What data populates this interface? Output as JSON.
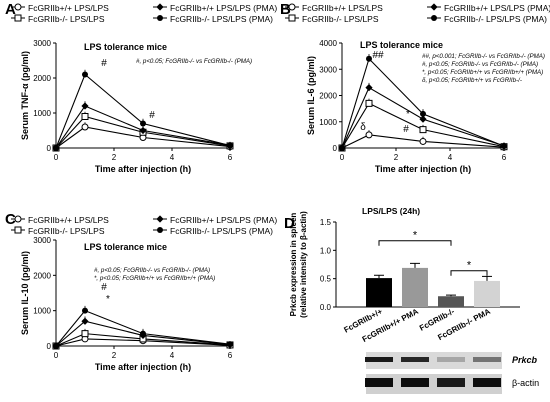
{
  "chart_data": [
    {
      "panel": "A",
      "type": "line",
      "title": "LPS tolerance mice",
      "xlabel": "Time after injection (h)",
      "ylabel": "Serum TNF-α (pg/ml)",
      "xlim": [
        0,
        6
      ],
      "ylim": [
        0,
        3000
      ],
      "xticks": [
        "0",
        "2",
        "4",
        "6"
      ],
      "yticks": [
        "0",
        "1000",
        "2000",
        "3000"
      ],
      "x": [
        0,
        1,
        3,
        6
      ],
      "series": [
        {
          "name": "FcGRIIb+/+ LPS/LPS",
          "marker": "open-circle",
          "values": [
            0,
            600,
            300,
            40
          ]
        },
        {
          "name": "FcGRIIb-/- LPS/LPS",
          "marker": "open-square",
          "values": [
            0,
            900,
            450,
            60
          ]
        },
        {
          "name": "FcGRIIb+/+ LPS/LPS (PMA)",
          "marker": "filled-diamond",
          "values": [
            0,
            1200,
            500,
            80
          ]
        },
        {
          "name": "FcGRIIb-/- LPS/LPS (PMA)",
          "marker": "filled-circle",
          "values": [
            0,
            2100,
            700,
            70
          ]
        }
      ],
      "annotations": [
        "#",
        "#"
      ],
      "note": "#, p<0.05; FcGRIIb-/- vs FcGRIIb-/- (PMA)",
      "legend": [
        {
          "label": "FcGRIIb+/+ LPS/LPS",
          "marker": "open-circle"
        },
        {
          "label": "FcGRIIb+/+ LPS/LPS (PMA)",
          "marker": "filled-diamond"
        },
        {
          "label": "FcGRIIb-/- LPS/LPS",
          "marker": "open-square"
        },
        {
          "label": "FcGRIIb-/- LPS/LPS (PMA)",
          "marker": "filled-circle"
        }
      ]
    },
    {
      "panel": "B",
      "type": "line",
      "title": "LPS tolerance mice",
      "xlabel": "Time after injection (h)",
      "ylabel": "Serum IL-6 (pg/ml)",
      "xlim": [
        0,
        6
      ],
      "ylim": [
        0,
        4000
      ],
      "xticks": [
        "0",
        "2",
        "4",
        "6"
      ],
      "yticks": [
        "0",
        "1000",
        "2000",
        "3000",
        "4000"
      ],
      "x": [
        0,
        1,
        3,
        6
      ],
      "series": [
        {
          "name": "FcGRIIb+/+ LPS/LPS",
          "marker": "open-circle",
          "values": [
            0,
            500,
            250,
            30
          ]
        },
        {
          "name": "FcGRIIb-/- LPS/LPS",
          "marker": "open-square",
          "values": [
            0,
            1700,
            700,
            50
          ]
        },
        {
          "name": "FcGRIIb+/+ LPS/LPS (PMA)",
          "marker": "filled-diamond",
          "values": [
            0,
            2300,
            1100,
            80
          ]
        },
        {
          "name": "FcGRIIb-/- LPS/LPS (PMA)",
          "marker": "filled-circle",
          "values": [
            0,
            3400,
            1300,
            70
          ]
        }
      ],
      "annotations": [
        "##",
        "δ",
        "*",
        "#"
      ],
      "notes": [
        "##, p<0.001; FcGRIIb-/- vs FcGRIIb-/- (PMA)",
        "#, p<0.05; FcGRIIb-/- vs FcGRIIb-/- (PMA)",
        "*, p<0.05; FcGRIIb+/+ vs FcGRIIb+/+ (PMA)",
        "δ, p<0.05; FcGRIIb+/+ vs FcGRIIb-/-"
      ],
      "legend": [
        {
          "label": "FcGRIIb+/+ LPS/LPS",
          "marker": "open-circle"
        },
        {
          "label": "FcGRIIb+/+ LPS/LPS (PMA)",
          "marker": "filled-diamond"
        },
        {
          "label": "FcGRIIb-/- LPS/LPS",
          "marker": "open-square"
        },
        {
          "label": "FcGRIIb-/- LPS/LPS (PMA)",
          "marker": "filled-circle"
        }
      ]
    },
    {
      "panel": "C",
      "type": "line",
      "title": "LPS tolerance mice",
      "xlabel": "Time after injection (h)",
      "ylabel": "Serum IL-10 (pg/ml)",
      "xlim": [
        0,
        6
      ],
      "ylim": [
        0,
        3000
      ],
      "xticks": [
        "0",
        "2",
        "4",
        "6"
      ],
      "yticks": [
        "0",
        "1000",
        "2000",
        "3000"
      ],
      "x": [
        0,
        1,
        3,
        6
      ],
      "series": [
        {
          "name": "FcGRIIb+/+ LPS/LPS",
          "marker": "open-circle",
          "values": [
            0,
            200,
            150,
            20
          ]
        },
        {
          "name": "FcGRIIb-/- LPS/LPS",
          "marker": "open-square",
          "values": [
            0,
            350,
            200,
            30
          ]
        },
        {
          "name": "FcGRIIb+/+ LPS/LPS (PMA)",
          "marker": "filled-diamond",
          "values": [
            0,
            700,
            300,
            40
          ]
        },
        {
          "name": "FcGRIIb-/- LPS/LPS (PMA)",
          "marker": "filled-circle",
          "values": [
            0,
            1000,
            350,
            50
          ]
        }
      ],
      "annotations": [
        "#",
        "*"
      ],
      "notes": [
        "#, p<0.05; FcGRIIb-/- vs FcGRIIb-/- (PMA)",
        "*, p<0.05; FcGRIIb+/+ vs FcGRIIb+/+ (PMA)"
      ],
      "legend": [
        {
          "label": "FcGRIIb+/+ LPS/LPS",
          "marker": "open-circle"
        },
        {
          "label": "FcGRIIb+/+ LPS/LPS (PMA)",
          "marker": "filled-diamond"
        },
        {
          "label": "FcGRIIb-/- LPS/LPS",
          "marker": "open-square"
        },
        {
          "label": "FcGRIIb-/- LPS/LPS (PMA)",
          "marker": "filled-circle"
        }
      ]
    },
    {
      "panel": "D",
      "type": "bar",
      "title": "LPS/LPS (24h)",
      "ylabel_lines": [
        "Prkcb expression in spleen",
        "(relative intensity to β-actin)"
      ],
      "ylim": [
        0,
        1.5
      ],
      "yticks": [
        "0.0",
        "0.5",
        "1.0",
        "1.5"
      ],
      "categories": [
        "FcGRIIb+/+",
        "FcGRIIb+/+ PMA",
        "FcGRIIb-/-",
        "FcGRIIb-/- PMA"
      ],
      "values": [
        0.51,
        0.69,
        0.19,
        0.46
      ],
      "errors": [
        0.05,
        0.08,
        0.02,
        0.08
      ],
      "colors": [
        "#000000",
        "#999999",
        "#555555",
        "#d3d3d3"
      ],
      "significance": [
        "*",
        "*"
      ],
      "blot_labels": [
        "Prkcb",
        "β-actin"
      ]
    }
  ]
}
